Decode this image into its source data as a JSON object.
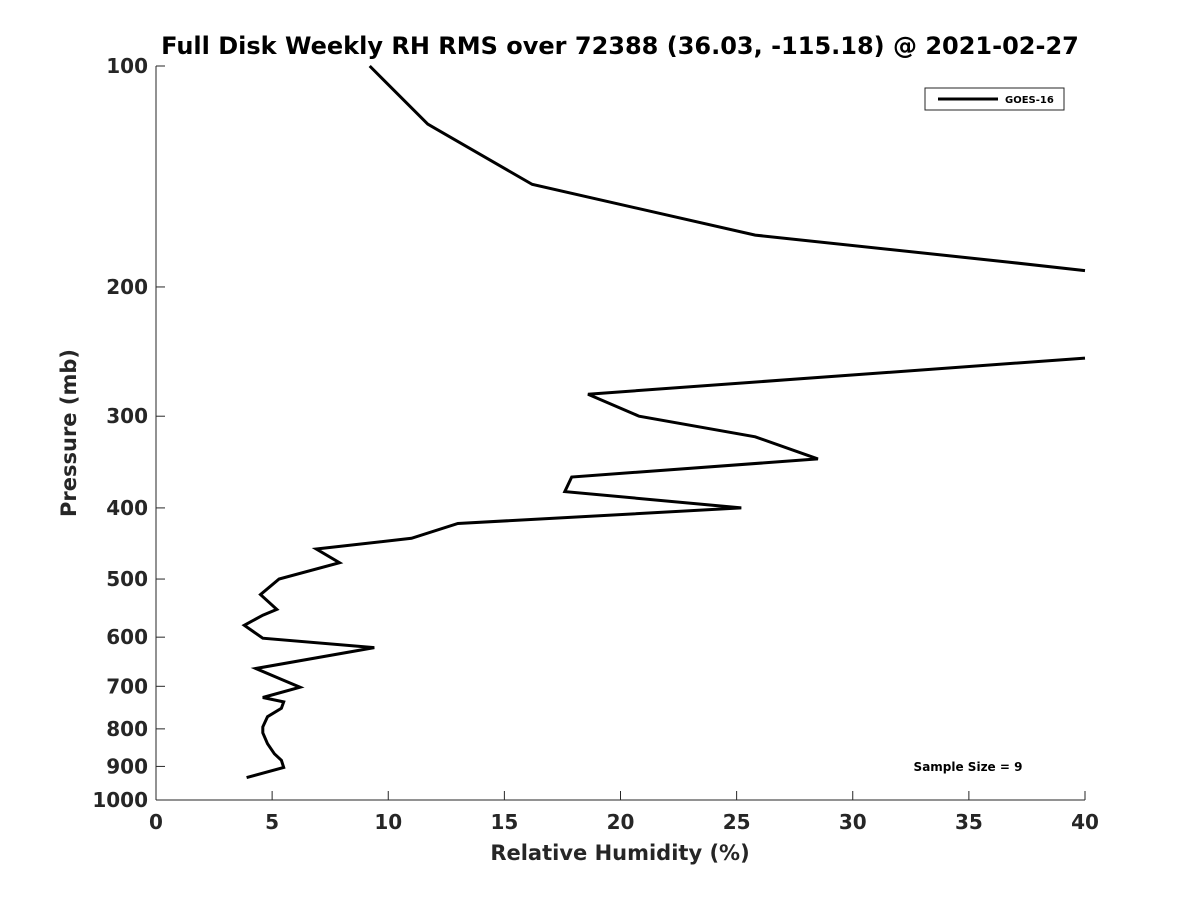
{
  "chart_data": {
    "type": "line",
    "title": "Full Disk Weekly RH RMS over 72388 (36.03, -115.18) @ 2021-02-27",
    "xlabel": "Relative Humidity (%)",
    "ylabel": "Pressure (mb)",
    "xlim": [
      0,
      40
    ],
    "ylim": [
      100,
      1000
    ],
    "y_scale": "log",
    "y_reversed": true,
    "grid": false,
    "legend_position": "top-right",
    "x_ticks": [
      0,
      5,
      10,
      15,
      20,
      25,
      30,
      35,
      40
    ],
    "x_tick_labels": [
      "0",
      "5",
      "10",
      "15",
      "20",
      "25",
      "30",
      "35",
      "40"
    ],
    "y_ticks": [
      100,
      200,
      300,
      400,
      500,
      600,
      700,
      800,
      900,
      1000
    ],
    "y_tick_labels": [
      "100",
      "200",
      "300",
      "400",
      "500",
      "600",
      "700",
      "800",
      "900",
      "1000"
    ],
    "series": [
      {
        "name": "GOES-16",
        "color": "#000000",
        "points": [
          [
            9.2,
            100
          ],
          [
            11.7,
            120
          ],
          [
            16.2,
            145
          ],
          [
            25.8,
            170
          ],
          [
            36.7,
            185
          ],
          [
            40.0,
            190
          ],
          [
            null,
            null
          ],
          [
            40.0,
            250
          ],
          [
            18.6,
            280
          ],
          [
            20.8,
            300
          ],
          [
            25.8,
            320
          ],
          [
            28.5,
            343
          ],
          [
            17.9,
            363
          ],
          [
            17.6,
            380
          ],
          [
            25.2,
            400
          ],
          [
            13.0,
            420
          ],
          [
            11.0,
            440
          ],
          [
            6.9,
            455
          ],
          [
            7.9,
            475
          ],
          [
            5.3,
            500
          ],
          [
            4.5,
            525
          ],
          [
            5.2,
            550
          ],
          [
            4.6,
            560
          ],
          [
            3.8,
            578
          ],
          [
            4.6,
            602
          ],
          [
            9.4,
            620
          ],
          [
            4.3,
            662
          ],
          [
            5.4,
            685
          ],
          [
            6.2,
            702
          ],
          [
            4.6,
            725
          ],
          [
            5.5,
            735
          ],
          [
            5.4,
            750
          ],
          [
            4.8,
            770
          ],
          [
            4.6,
            795
          ],
          [
            4.6,
            810
          ],
          [
            4.8,
            838
          ],
          [
            5.1,
            865
          ],
          [
            5.4,
            883
          ],
          [
            5.5,
            903
          ],
          [
            3.9,
            932
          ]
        ]
      }
    ],
    "annotations": [
      {
        "text": "Sample Size = 9",
        "position": "bottom-right"
      }
    ]
  }
}
